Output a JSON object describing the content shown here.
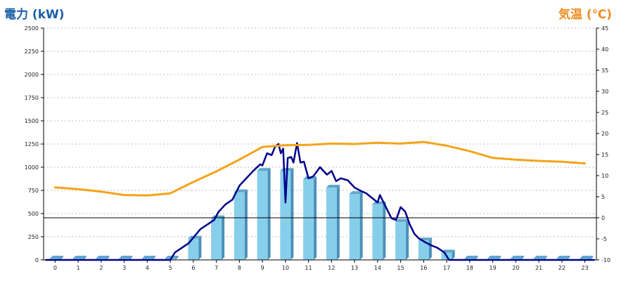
{
  "chart_data": {
    "type": "bar",
    "title": "",
    "ylabel_left": "電力 (kW)",
    "ylabel_right": "気温 (℃)",
    "categories": [
      "0",
      "1",
      "2",
      "3",
      "4",
      "5",
      "6",
      "7",
      "8",
      "9",
      "10",
      "11",
      "12",
      "13",
      "14",
      "15",
      "16",
      "17",
      "18",
      "19",
      "20",
      "21",
      "22",
      "23"
    ],
    "ylim_left": [
      0,
      2500
    ],
    "ylim_right": [
      -10,
      45
    ],
    "yticks_left": [
      0,
      250,
      500,
      750,
      1000,
      1250,
      1500,
      1750,
      2000,
      2250,
      2500
    ],
    "yticks_right": [
      -10,
      -5,
      0,
      5,
      10,
      15,
      20,
      25,
      30,
      35,
      40,
      45
    ],
    "grid": true,
    "series": [
      {
        "kind": "bar",
        "axis": "left",
        "color": "#87ceeb",
        "values": [
          15,
          15,
          15,
          15,
          15,
          15,
          230,
          450,
          730,
          960,
          960,
          870,
          780,
          710,
          600,
          410,
          210,
          80,
          15,
          15,
          15,
          15,
          15,
          15
        ]
      },
      {
        "kind": "line",
        "axis": "left",
        "color": "#00008b",
        "points": [
          [
            -0.4,
            0
          ],
          [
            5.0,
            0
          ],
          [
            5.2,
            80
          ],
          [
            5.5,
            130
          ],
          [
            5.8,
            180
          ],
          [
            6.0,
            240
          ],
          [
            6.3,
            330
          ],
          [
            6.6,
            380
          ],
          [
            6.9,
            430
          ],
          [
            7.1,
            520
          ],
          [
            7.4,
            600
          ],
          [
            7.7,
            650
          ],
          [
            8.0,
            800
          ],
          [
            8.3,
            880
          ],
          [
            8.6,
            960
          ],
          [
            8.9,
            1030
          ],
          [
            9.0,
            1020
          ],
          [
            9.2,
            1150
          ],
          [
            9.4,
            1130
          ],
          [
            9.55,
            1220
          ],
          [
            9.7,
            1250
          ],
          [
            9.8,
            1150
          ],
          [
            9.9,
            1200
          ],
          [
            10.0,
            620
          ],
          [
            10.1,
            1100
          ],
          [
            10.25,
            1110
          ],
          [
            10.35,
            1050
          ],
          [
            10.5,
            1260
          ],
          [
            10.65,
            1050
          ],
          [
            10.8,
            1060
          ],
          [
            11.0,
            880
          ],
          [
            11.2,
            900
          ],
          [
            11.5,
            1000
          ],
          [
            11.8,
            920
          ],
          [
            12.0,
            960
          ],
          [
            12.2,
            850
          ],
          [
            12.4,
            880
          ],
          [
            12.7,
            860
          ],
          [
            13.0,
            780
          ],
          [
            13.3,
            740
          ],
          [
            13.5,
            720
          ],
          [
            13.8,
            660
          ],
          [
            14.0,
            620
          ],
          [
            14.1,
            700
          ],
          [
            14.3,
            600
          ],
          [
            14.6,
            450
          ],
          [
            14.8,
            430
          ],
          [
            15.0,
            570
          ],
          [
            15.2,
            520
          ],
          [
            15.4,
            380
          ],
          [
            15.6,
            280
          ],
          [
            15.8,
            230
          ],
          [
            16.0,
            200
          ],
          [
            16.3,
            160
          ],
          [
            16.6,
            130
          ],
          [
            16.9,
            80
          ],
          [
            17.1,
            0
          ],
          [
            23.4,
            0
          ]
        ]
      },
      {
        "kind": "line",
        "axis": "right",
        "color": "#f5a31a",
        "points": [
          [
            0,
            7.2
          ],
          [
            1,
            6.8
          ],
          [
            2,
            6.2
          ],
          [
            3,
            5.4
          ],
          [
            4,
            5.3
          ],
          [
            5,
            5.8
          ],
          [
            6,
            8.5
          ],
          [
            7,
            11.0
          ],
          [
            8,
            13.8
          ],
          [
            9,
            16.8
          ],
          [
            10,
            17.2
          ],
          [
            11,
            17.3
          ],
          [
            12,
            17.6
          ],
          [
            13,
            17.5
          ],
          [
            14,
            17.8
          ],
          [
            15,
            17.6
          ],
          [
            16,
            18.0
          ],
          [
            17,
            17.1
          ],
          [
            18,
            15.8
          ],
          [
            19,
            14.2
          ],
          [
            20,
            13.8
          ],
          [
            21,
            13.5
          ],
          [
            22,
            13.3
          ],
          [
            23,
            12.9
          ]
        ]
      }
    ]
  }
}
